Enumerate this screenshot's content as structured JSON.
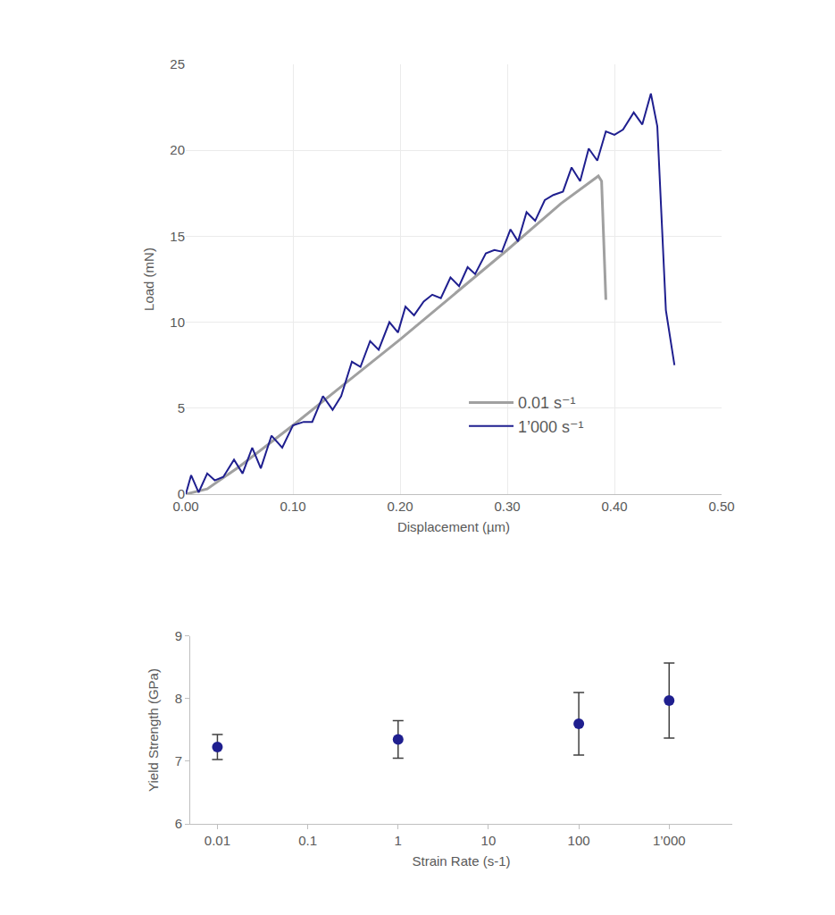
{
  "chart_data": [
    {
      "type": "line",
      "x_label": "Displacement (µm)",
      "y_label": "Load (mN)",
      "xlim": [
        0,
        0.5
      ],
      "ylim": [
        0,
        25
      ],
      "xticks": [
        {
          "value": 0,
          "label": "0.00"
        },
        {
          "value": 0.1,
          "label": "0.10"
        },
        {
          "value": 0.2,
          "label": "0.20"
        },
        {
          "value": 0.3,
          "label": "0.30"
        },
        {
          "value": 0.4,
          "label": "0.40"
        },
        {
          "value": 0.5,
          "label": "0.50"
        }
      ],
      "yticks": [
        0,
        5,
        10,
        15,
        20,
        25
      ],
      "grid": true,
      "legend": "lower right",
      "series": [
        {
          "name": "0.01 s⁻¹",
          "color": "#a0a0a0",
          "x": [
            0,
            0.02,
            0.05,
            0.1,
            0.15,
            0.2,
            0.25,
            0.3,
            0.35,
            0.38,
            0.385,
            0.388,
            0.392
          ],
          "values": [
            0,
            0.3,
            1.6,
            4.0,
            6.5,
            9.0,
            11.6,
            14.2,
            16.9,
            18.3,
            18.5,
            18.2,
            11.3
          ]
        },
        {
          "name": "1’000 s⁻¹",
          "color": "#1f1f8f",
          "x": [
            0,
            0.005,
            0.012,
            0.02,
            0.027,
            0.035,
            0.045,
            0.053,
            0.062,
            0.07,
            0.08,
            0.09,
            0.1,
            0.11,
            0.118,
            0.128,
            0.137,
            0.145,
            0.155,
            0.163,
            0.172,
            0.18,
            0.19,
            0.198,
            0.205,
            0.213,
            0.222,
            0.23,
            0.238,
            0.247,
            0.255,
            0.263,
            0.27,
            0.28,
            0.288,
            0.295,
            0.303,
            0.31,
            0.318,
            0.326,
            0.335,
            0.343,
            0.352,
            0.36,
            0.368,
            0.376,
            0.384,
            0.392,
            0.4,
            0.408,
            0.418,
            0.426,
            0.434,
            0.44,
            0.448,
            0.456
          ],
          "values": [
            0,
            1.1,
            0.1,
            1.2,
            0.8,
            1.0,
            2.0,
            1.2,
            2.7,
            1.5,
            3.4,
            2.7,
            4.0,
            4.2,
            4.2,
            5.7,
            4.9,
            5.7,
            7.7,
            7.4,
            8.9,
            8.4,
            10.0,
            9.4,
            10.9,
            10.4,
            11.2,
            11.6,
            11.4,
            12.6,
            12.1,
            13.2,
            12.8,
            14.0,
            14.2,
            14.1,
            15.4,
            14.7,
            16.4,
            15.9,
            17.1,
            17.4,
            17.6,
            19.0,
            18.2,
            20.1,
            19.4,
            21.1,
            20.9,
            21.2,
            22.2,
            21.5,
            23.3,
            21.4,
            10.7,
            7.5
          ]
        }
      ]
    },
    {
      "type": "scatter",
      "x_label": "Strain Rate (s-1)",
      "y_label": "Yield Strength (GPa)",
      "log": "x",
      "xlim": [
        0.005,
        5000
      ],
      "ylim": [
        6,
        9
      ],
      "xticks": [
        0.01,
        0.1,
        1,
        10,
        100,
        {
          "value": 1000,
          "label": "1’000"
        }
      ],
      "yticks": [
        6,
        7,
        8,
        9
      ],
      "grid": false,
      "color": "#1f1f8f",
      "marker": "circle",
      "x": [
        0.01,
        1,
        100,
        1000
      ],
      "values": [
        7.23,
        7.35,
        7.6,
        7.97
      ],
      "errors": [
        0.2,
        0.3,
        0.5,
        0.6
      ]
    }
  ]
}
